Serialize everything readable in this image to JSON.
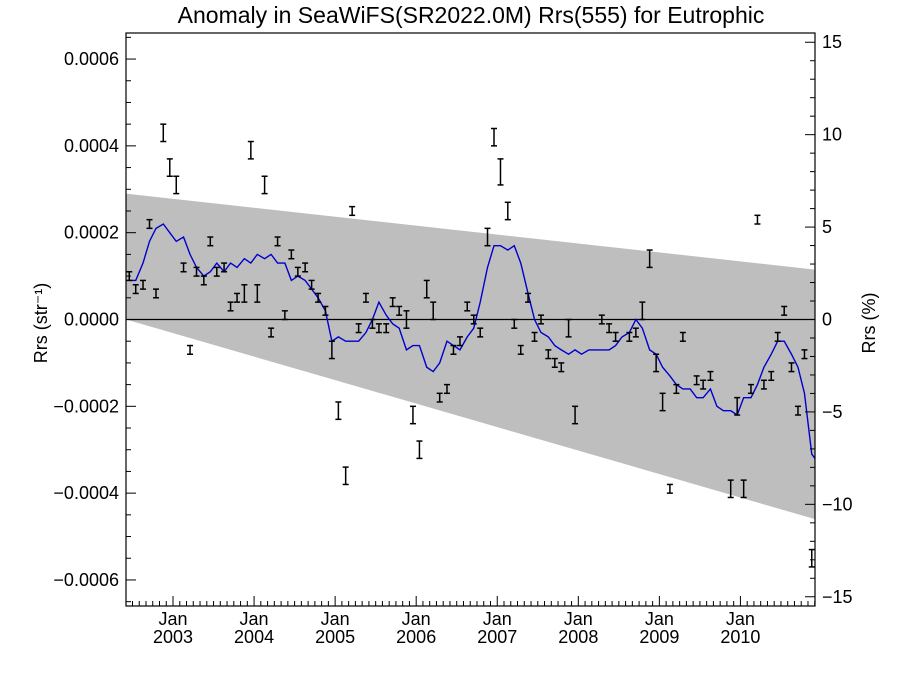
{
  "chart_data": {
    "type": "line",
    "title": "Anomaly in SeaWiFS(SR2022.0M) Rrs(555) for Eutrophic",
    "ylabel_left": "Rrs (str⁻¹)",
    "ylabel_right": "Rrs (%)",
    "xlabel": "",
    "xlim": [
      2002.42,
      2010.92
    ],
    "ylim_left": [
      -0.00066,
      0.00066
    ],
    "ylim_right": [
      -15.5,
      15.5
    ],
    "x_ticks": [
      {
        "label": "Jan",
        "year": "2003",
        "x": 2003.0
      },
      {
        "label": "Jan",
        "year": "2004",
        "x": 2004.0
      },
      {
        "label": "Jan",
        "year": "2005",
        "x": 2005.0
      },
      {
        "label": "Jan",
        "year": "2006",
        "x": 2006.0
      },
      {
        "label": "Jan",
        "year": "2007",
        "x": 2007.0
      },
      {
        "label": "Jan",
        "year": "2008",
        "x": 2008.0
      },
      {
        "label": "Jan",
        "year": "2009",
        "x": 2009.0
      },
      {
        "label": "Jan",
        "year": "2010",
        "x": 2010.0
      }
    ],
    "y_ticks_left": [
      {
        "label": "0.0006",
        "value": 0.0006
      },
      {
        "label": "0.0004",
        "value": 0.0004
      },
      {
        "label": "0.0002",
        "value": 0.0002
      },
      {
        "label": "0.0000",
        "value": 0.0
      },
      {
        "label": "−0.0002",
        "value": -0.0002
      },
      {
        "label": "−0.0004",
        "value": -0.0004
      },
      {
        "label": "−0.0006",
        "value": -0.0006
      }
    ],
    "y_ticks_right": [
      {
        "label": "15",
        "value": 15
      },
      {
        "label": "10",
        "value": 10
      },
      {
        "label": "5",
        "value": 5
      },
      {
        "label": "0",
        "value": 0
      },
      {
        "label": "−5",
        "value": -5
      },
      {
        "label": "−10",
        "value": -10
      },
      {
        "label": "−15",
        "value": -15
      }
    ],
    "band": {
      "upper": [
        [
          2002.42,
          0.00029
        ],
        [
          2010.92,
          0.000115
        ]
      ],
      "lower": [
        [
          2002.42,
          0.0
        ],
        [
          2010.92,
          -0.00046
        ]
      ],
      "color": "#bebebe"
    },
    "zero_line": 0.0,
    "series": [
      {
        "type": "line",
        "color": "#0000cc",
        "points": [
          [
            2002.46,
            9e-05
          ],
          [
            2002.54,
            9e-05
          ],
          [
            2002.63,
            0.00013
          ],
          [
            2002.71,
            0.00018
          ],
          [
            2002.79,
            0.00021
          ],
          [
            2002.88,
            0.00022
          ],
          [
            2002.96,
            0.0002
          ],
          [
            2003.04,
            0.00018
          ],
          [
            2003.13,
            0.00019
          ],
          [
            2003.21,
            0.00015
          ],
          [
            2003.29,
            0.00012
          ],
          [
            2003.38,
            0.0001
          ],
          [
            2003.46,
            0.00011
          ],
          [
            2003.54,
            0.00013
          ],
          [
            2003.63,
            0.00011
          ],
          [
            2003.71,
            0.00013
          ],
          [
            2003.79,
            0.00012
          ],
          [
            2003.88,
            0.00014
          ],
          [
            2003.96,
            0.00013
          ],
          [
            2004.04,
            0.00015
          ],
          [
            2004.13,
            0.00014
          ],
          [
            2004.21,
            0.00015
          ],
          [
            2004.29,
            0.00013
          ],
          [
            2004.38,
            0.00013
          ],
          [
            2004.46,
            9e-05
          ],
          [
            2004.54,
            0.0001
          ],
          [
            2004.63,
            9e-05
          ],
          [
            2004.71,
            7e-05
          ],
          [
            2004.79,
            5e-05
          ],
          [
            2004.88,
            2e-05
          ],
          [
            2004.96,
            -5e-05
          ],
          [
            2005.04,
            -4e-05
          ],
          [
            2005.13,
            -5e-05
          ],
          [
            2005.21,
            -5e-05
          ],
          [
            2005.29,
            -5e-05
          ],
          [
            2005.38,
            -3e-05
          ],
          [
            2005.46,
            0.0
          ],
          [
            2005.54,
            4e-05
          ],
          [
            2005.63,
            1e-05
          ],
          [
            2005.71,
            -1e-05
          ],
          [
            2005.79,
            -2e-05
          ],
          [
            2005.88,
            -7e-05
          ],
          [
            2005.96,
            -6e-05
          ],
          [
            2006.04,
            -6e-05
          ],
          [
            2006.13,
            -0.00011
          ],
          [
            2006.21,
            -0.00012
          ],
          [
            2006.29,
            -0.0001
          ],
          [
            2006.38,
            -5e-05
          ],
          [
            2006.46,
            -6e-05
          ],
          [
            2006.54,
            -7e-05
          ],
          [
            2006.63,
            -4e-05
          ],
          [
            2006.71,
            -2e-05
          ],
          [
            2006.79,
            4e-05
          ],
          [
            2006.88,
            0.00012
          ],
          [
            2006.96,
            0.00017
          ],
          [
            2007.04,
            0.00017
          ],
          [
            2007.13,
            0.00016
          ],
          [
            2007.21,
            0.00017
          ],
          [
            2007.29,
            0.00013
          ],
          [
            2007.38,
            6e-05
          ],
          [
            2007.46,
            0.0
          ],
          [
            2007.54,
            -3e-05
          ],
          [
            2007.63,
            -4e-05
          ],
          [
            2007.71,
            -6e-05
          ],
          [
            2007.79,
            -7e-05
          ],
          [
            2007.88,
            -8e-05
          ],
          [
            2007.96,
            -7e-05
          ],
          [
            2008.04,
            -8e-05
          ],
          [
            2008.13,
            -7e-05
          ],
          [
            2008.21,
            -7e-05
          ],
          [
            2008.29,
            -7e-05
          ],
          [
            2008.38,
            -7e-05
          ],
          [
            2008.46,
            -6e-05
          ],
          [
            2008.54,
            -4e-05
          ],
          [
            2008.63,
            -3e-05
          ],
          [
            2008.71,
            0.0
          ],
          [
            2008.79,
            -2e-05
          ],
          [
            2008.88,
            -7e-05
          ],
          [
            2008.96,
            -8e-05
          ],
          [
            2009.04,
            -0.00011
          ],
          [
            2009.13,
            -0.00013
          ],
          [
            2009.21,
            -0.00015
          ],
          [
            2009.29,
            -0.00016
          ],
          [
            2009.38,
            -0.00016
          ],
          [
            2009.46,
            -0.00018
          ],
          [
            2009.54,
            -0.00018
          ],
          [
            2009.63,
            -0.00016
          ],
          [
            2009.71,
            -0.0002
          ],
          [
            2009.79,
            -0.00021
          ],
          [
            2009.88,
            -0.00021
          ],
          [
            2009.96,
            -0.00022
          ],
          [
            2010.04,
            -0.00018
          ],
          [
            2010.13,
            -0.00018
          ],
          [
            2010.21,
            -0.00015
          ],
          [
            2010.29,
            -0.00011
          ],
          [
            2010.38,
            -8e-05
          ],
          [
            2010.46,
            -5e-05
          ],
          [
            2010.54,
            -5e-05
          ],
          [
            2010.63,
            -8e-05
          ],
          [
            2010.71,
            -0.00011
          ],
          [
            2010.79,
            -0.00017
          ],
          [
            2010.88,
            -0.00031
          ],
          [
            2010.92,
            -0.00032
          ]
        ]
      },
      {
        "type": "errorbar",
        "color": "#000000",
        "points": [
          [
            2002.46,
            0.0001,
            1e-05
          ],
          [
            2002.54,
            7e-05,
            1e-05
          ],
          [
            2002.63,
            8e-05,
            1e-05
          ],
          [
            2002.71,
            0.00022,
            1e-05
          ],
          [
            2002.79,
            6e-05,
            1e-05
          ],
          [
            2002.88,
            0.00043,
            2e-05
          ],
          [
            2002.96,
            0.00035,
            2e-05
          ],
          [
            2003.04,
            0.00031,
            2e-05
          ],
          [
            2003.13,
            0.00012,
            1e-05
          ],
          [
            2003.21,
            -7e-05,
            1e-05
          ],
          [
            2003.29,
            0.00011,
            1e-05
          ],
          [
            2003.38,
            9e-05,
            1e-05
          ],
          [
            2003.46,
            0.00018,
            1e-05
          ],
          [
            2003.54,
            0.00011,
            1e-05
          ],
          [
            2003.63,
            0.00012,
            1e-05
          ],
          [
            2003.71,
            3e-05,
            1e-05
          ],
          [
            2003.79,
            5e-05,
            1e-05
          ],
          [
            2003.88,
            6e-05,
            2e-05
          ],
          [
            2003.96,
            0.00039,
            2e-05
          ],
          [
            2004.04,
            6e-05,
            2e-05
          ],
          [
            2004.13,
            0.00031,
            2e-05
          ],
          [
            2004.21,
            -3e-05,
            1e-05
          ],
          [
            2004.29,
            0.00018,
            1e-05
          ],
          [
            2004.38,
            1e-05,
            1e-05
          ],
          [
            2004.46,
            0.00015,
            1e-05
          ],
          [
            2004.54,
            0.00011,
            1e-05
          ],
          [
            2004.63,
            0.00012,
            1e-05
          ],
          [
            2004.71,
            8e-05,
            1e-05
          ],
          [
            2004.79,
            5e-05,
            1e-05
          ],
          [
            2004.88,
            2e-05,
            1e-05
          ],
          [
            2004.96,
            -7e-05,
            2e-05
          ],
          [
            2005.04,
            -0.00021,
            2e-05
          ],
          [
            2005.13,
            -0.00036,
            2e-05
          ],
          [
            2005.21,
            0.00025,
            1e-05
          ],
          [
            2005.29,
            -2e-05,
            1e-05
          ],
          [
            2005.38,
            5e-05,
            1e-05
          ],
          [
            2005.46,
            -1e-05,
            1e-05
          ],
          [
            2005.54,
            -2e-05,
            1e-05
          ],
          [
            2005.63,
            -2e-05,
            1e-05
          ],
          [
            2005.71,
            4e-05,
            1e-05
          ],
          [
            2005.79,
            2e-05,
            1e-05
          ],
          [
            2005.88,
            0.0,
            2e-05
          ],
          [
            2005.96,
            -0.00022,
            2e-05
          ],
          [
            2006.04,
            -0.0003,
            2e-05
          ],
          [
            2006.13,
            7e-05,
            2e-05
          ],
          [
            2006.21,
            2e-05,
            2e-05
          ],
          [
            2006.29,
            -0.00018,
            1e-05
          ],
          [
            2006.38,
            -0.00016,
            1e-05
          ],
          [
            2006.46,
            -7e-05,
            1e-05
          ],
          [
            2006.54,
            -5e-05,
            1e-05
          ],
          [
            2006.63,
            3e-05,
            1e-05
          ],
          [
            2006.71,
            0.0,
            1e-05
          ],
          [
            2006.79,
            -3e-05,
            1e-05
          ],
          [
            2006.88,
            0.00019,
            2e-05
          ],
          [
            2006.96,
            0.00042,
            2e-05
          ],
          [
            2007.04,
            0.00034,
            3e-05
          ],
          [
            2007.13,
            0.00025,
            2e-05
          ],
          [
            2007.21,
            -1e-05,
            1e-05
          ],
          [
            2007.29,
            -7e-05,
            1e-05
          ],
          [
            2007.38,
            5e-05,
            1e-05
          ],
          [
            2007.46,
            -4e-05,
            1e-05
          ],
          [
            2007.54,
            0.0,
            1e-05
          ],
          [
            2007.63,
            -8e-05,
            1e-05
          ],
          [
            2007.71,
            -0.0001,
            1e-05
          ],
          [
            2007.79,
            -0.00011,
            1e-05
          ],
          [
            2007.88,
            -2e-05,
            2e-05
          ],
          [
            2007.96,
            -0.00022,
            2e-05
          ],
          [
            2008.29,
            0.0,
            1e-05
          ],
          [
            2008.38,
            -2e-05,
            1e-05
          ],
          [
            2008.46,
            -4e-05,
            1e-05
          ],
          [
            2008.63,
            -4e-05,
            1e-05
          ],
          [
            2008.71,
            -3e-05,
            1e-05
          ],
          [
            2008.79,
            2e-05,
            2e-05
          ],
          [
            2008.88,
            0.00014,
            2e-05
          ],
          [
            2008.96,
            -0.0001,
            2e-05
          ],
          [
            2009.04,
            -0.00019,
            2e-05
          ],
          [
            2009.13,
            -0.00039,
            1e-05
          ],
          [
            2009.21,
            -0.00016,
            1e-05
          ],
          [
            2009.29,
            -4e-05,
            1e-05
          ],
          [
            2009.46,
            -0.00014,
            1e-05
          ],
          [
            2009.54,
            -0.00015,
            1e-05
          ],
          [
            2009.63,
            -0.00013,
            1e-05
          ],
          [
            2009.88,
            -0.00039,
            2e-05
          ],
          [
            2009.96,
            -0.0002,
            2e-05
          ],
          [
            2010.04,
            -0.00039,
            2e-05
          ],
          [
            2010.13,
            -0.00016,
            1e-05
          ],
          [
            2010.21,
            0.00023,
            1e-05
          ],
          [
            2010.29,
            -0.00015,
            1e-05
          ],
          [
            2010.38,
            -0.00013,
            1e-05
          ],
          [
            2010.46,
            -4e-05,
            1e-05
          ],
          [
            2010.54,
            2e-05,
            1e-05
          ],
          [
            2010.63,
            -0.00011,
            1e-05
          ],
          [
            2010.71,
            -0.00021,
            1e-05
          ],
          [
            2010.79,
            -8e-05,
            1e-05
          ],
          [
            2010.88,
            -0.00055,
            2e-05
          ]
        ]
      }
    ],
    "grid": false,
    "legend": "none"
  }
}
